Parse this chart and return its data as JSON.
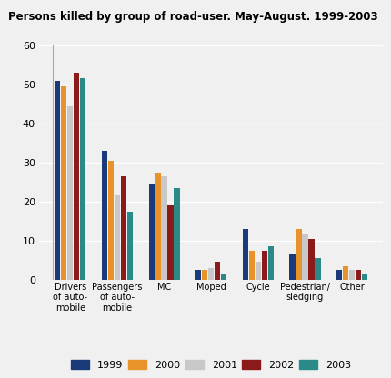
{
  "title": "Persons killed by group of road-user. May-August. 1999-2003",
  "categories": [
    "Drivers\nof auto-\nmobile",
    "Passengers\nof auto-\nmobile",
    "MC",
    "Moped",
    "Cycle",
    "Pedestrian/\nsledging",
    "Other"
  ],
  "years": [
    "1999",
    "2000",
    "2001",
    "2002",
    "2003"
  ],
  "colors": [
    "#1a3a7a",
    "#e8922a",
    "#c8c8c8",
    "#8b1a1a",
    "#2a8a8a"
  ],
  "data": {
    "1999": [
      51,
      33,
      24.5,
      2.5,
      13,
      6.5,
      2.5
    ],
    "2000": [
      49.5,
      30.5,
      27.5,
      2.5,
      7.5,
      13,
      3.5
    ],
    "2001": [
      44.5,
      21.5,
      26.5,
      3.0,
      4.5,
      11.5,
      2.5
    ],
    "2002": [
      53,
      26.5,
      19,
      4.5,
      7.5,
      10.5,
      2.5
    ],
    "2003": [
      51.5,
      17.5,
      23.5,
      1.5,
      8.5,
      5.5,
      1.5
    ]
  },
  "ylim": [
    0,
    60
  ],
  "yticks": [
    0,
    10,
    20,
    30,
    40,
    50,
    60
  ],
  "background_color": "#f0f0f0",
  "plot_bg_color": "#f0f0f0",
  "grid_color": "#ffffff"
}
